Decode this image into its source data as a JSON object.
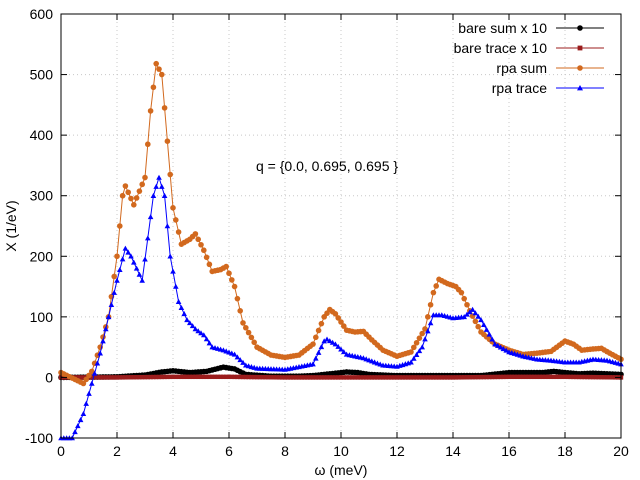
{
  "chart_data": {
    "type": "line",
    "title": "",
    "xlabel": "ω (meV)",
    "ylabel": "X (1/eV)",
    "xlim": [
      0,
      20
    ],
    "ylim": [
      -100,
      600
    ],
    "xticks": [
      0,
      2,
      4,
      6,
      8,
      10,
      12,
      14,
      16,
      18,
      20
    ],
    "yticks": [
      -100,
      0,
      100,
      200,
      300,
      400,
      500,
      600
    ],
    "grid": true,
    "legend_position": "top-right",
    "annotation": "q = {0.0, 0.695, 0.695 }",
    "series": [
      {
        "name": "bare sum x 10",
        "color": "#000000",
        "marker": "circle",
        "points": [
          [
            0,
            0
          ],
          [
            2,
            1
          ],
          [
            3,
            4
          ],
          [
            3.6,
            9
          ],
          [
            4,
            11
          ],
          [
            4.6,
            8
          ],
          [
            5.2,
            10
          ],
          [
            5.8,
            17
          ],
          [
            6.2,
            14
          ],
          [
            6.6,
            5
          ],
          [
            7.5,
            2
          ],
          [
            8.5,
            2
          ],
          [
            9,
            3
          ],
          [
            9.6,
            6
          ],
          [
            10.2,
            9
          ],
          [
            10.6,
            8
          ],
          [
            11,
            5
          ],
          [
            12,
            3
          ],
          [
            13,
            3
          ],
          [
            14,
            3
          ],
          [
            15,
            3
          ],
          [
            16,
            8
          ],
          [
            16.6,
            8
          ],
          [
            17.2,
            8
          ],
          [
            17.6,
            10
          ],
          [
            18,
            8
          ],
          [
            18.5,
            6
          ],
          [
            19,
            7
          ],
          [
            19.5,
            6
          ],
          [
            20,
            5
          ]
        ]
      },
      {
        "name": "bare trace x 10",
        "color": "#9b1c1c",
        "marker": "square",
        "points": [
          [
            0,
            0
          ],
          [
            2,
            0
          ],
          [
            4,
            1
          ],
          [
            6,
            1
          ],
          [
            8,
            0
          ],
          [
            10,
            0
          ],
          [
            12,
            0
          ],
          [
            14,
            0
          ],
          [
            16,
            1
          ],
          [
            18,
            1
          ],
          [
            20,
            0
          ]
        ]
      },
      {
        "name": "rpa sum",
        "color": "#d2691e",
        "marker": "circle",
        "points": [
          [
            0,
            8
          ],
          [
            0.8,
            -10
          ],
          [
            1.1,
            10
          ],
          [
            1.4,
            50
          ],
          [
            1.7,
            100
          ],
          [
            2,
            200
          ],
          [
            2.2,
            300
          ],
          [
            2.3,
            316
          ],
          [
            2.6,
            285
          ],
          [
            3,
            330
          ],
          [
            3.2,
            440
          ],
          [
            3.4,
            518
          ],
          [
            3.6,
            500
          ],
          [
            3.8,
            390
          ],
          [
            4,
            280
          ],
          [
            4.3,
            220
          ],
          [
            4.6,
            228
          ],
          [
            4.8,
            237
          ],
          [
            5.1,
            210
          ],
          [
            5.4,
            175
          ],
          [
            5.7,
            178
          ],
          [
            5.9,
            183
          ],
          [
            6.2,
            150
          ],
          [
            6.5,
            90
          ],
          [
            7,
            50
          ],
          [
            7.5,
            37
          ],
          [
            8,
            33
          ],
          [
            8.5,
            37
          ],
          [
            9,
            55
          ],
          [
            9.4,
            100
          ],
          [
            9.6,
            112
          ],
          [
            9.8,
            105
          ],
          [
            10.2,
            78
          ],
          [
            10.5,
            75
          ],
          [
            10.8,
            76
          ],
          [
            11.1,
            62
          ],
          [
            11.5,
            45
          ],
          [
            12,
            35
          ],
          [
            12.5,
            42
          ],
          [
            13,
            80
          ],
          [
            13.3,
            140
          ],
          [
            13.5,
            162
          ],
          [
            13.8,
            155
          ],
          [
            14.1,
            150
          ],
          [
            14.3,
            140
          ],
          [
            14.6,
            110
          ],
          [
            15,
            75
          ],
          [
            15.5,
            55
          ],
          [
            16,
            45
          ],
          [
            16.5,
            38
          ],
          [
            17,
            40
          ],
          [
            17.5,
            43
          ],
          [
            18,
            60
          ],
          [
            18.3,
            55
          ],
          [
            18.6,
            45
          ],
          [
            19,
            47
          ],
          [
            19.3,
            48
          ],
          [
            19.6,
            40
          ],
          [
            20,
            30
          ]
        ]
      },
      {
        "name": "rpa trace",
        "color": "#0000ff",
        "marker": "triangle",
        "points": [
          [
            0,
            -100
          ],
          [
            0.4,
            -100
          ],
          [
            0.8,
            -60
          ],
          [
            1.1,
            -10
          ],
          [
            1.4,
            40
          ],
          [
            1.7,
            100
          ],
          [
            2,
            160
          ],
          [
            2.3,
            213
          ],
          [
            2.5,
            200
          ],
          [
            2.9,
            160
          ],
          [
            3.1,
            230
          ],
          [
            3.3,
            300
          ],
          [
            3.5,
            330
          ],
          [
            3.7,
            300
          ],
          [
            3.9,
            200
          ],
          [
            4.2,
            125
          ],
          [
            4.5,
            95
          ],
          [
            4.8,
            80
          ],
          [
            5.1,
            70
          ],
          [
            5.4,
            50
          ],
          [
            5.8,
            45
          ],
          [
            6.2,
            38
          ],
          [
            6.6,
            20
          ],
          [
            7,
            15
          ],
          [
            8,
            13
          ],
          [
            9,
            22
          ],
          [
            9.4,
            60
          ],
          [
            9.5,
            63
          ],
          [
            9.8,
            55
          ],
          [
            10.2,
            38
          ],
          [
            10.8,
            32
          ],
          [
            11.5,
            20
          ],
          [
            12,
            18
          ],
          [
            12.5,
            25
          ],
          [
            12.9,
            50
          ],
          [
            13.3,
            103
          ],
          [
            13.6,
            103
          ],
          [
            14,
            98
          ],
          [
            14.4,
            100
          ],
          [
            14.7,
            112
          ],
          [
            15,
            95
          ],
          [
            15.5,
            55
          ],
          [
            16,
            42
          ],
          [
            16.5,
            35
          ],
          [
            17,
            30
          ],
          [
            17.5,
            28
          ],
          [
            18,
            25
          ],
          [
            18.5,
            25
          ],
          [
            19,
            30
          ],
          [
            19.5,
            28
          ],
          [
            20,
            22
          ]
        ]
      }
    ]
  }
}
